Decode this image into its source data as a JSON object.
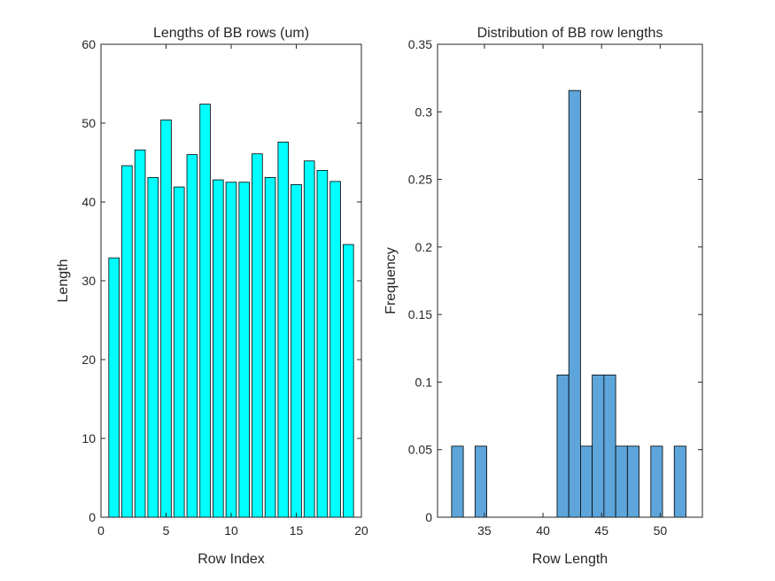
{
  "chart_data": [
    {
      "type": "bar",
      "title": "Lengths of BB rows (um)",
      "xlabel": "Row Index",
      "ylabel": "Length",
      "xlim": [
        0,
        20
      ],
      "ylim": [
        0,
        60
      ],
      "xticks": [
        "0",
        "5",
        "10",
        "15",
        "20"
      ],
      "yticks": [
        "0",
        "10",
        "20",
        "30",
        "40",
        "50",
        "60"
      ],
      "x": [
        1,
        2,
        3,
        4,
        5,
        6,
        7,
        8,
        9,
        10,
        11,
        12,
        13,
        14,
        15,
        16,
        17,
        18,
        19
      ],
      "values": [
        32.9,
        44.6,
        46.6,
        43.1,
        50.4,
        41.9,
        46.0,
        52.4,
        42.8,
        42.5,
        42.5,
        46.1,
        43.1,
        47.6,
        42.2,
        45.2,
        44.0,
        42.6,
        34.6
      ],
      "bar_color": "#00FFFF",
      "grid": false
    },
    {
      "type": "bar",
      "title": "Distribution of BB row lengths",
      "xlabel": "Row Length",
      "ylabel": "Frequency",
      "xlim": [
        31,
        53.6
      ],
      "ylim": [
        0,
        0.35
      ],
      "xticks": [
        "35",
        "40",
        "45",
        "50"
      ],
      "xtick_values": [
        35,
        40,
        45,
        50
      ],
      "yticks": [
        "0",
        "0.05",
        "0.1",
        "0.15",
        "0.2",
        "0.25",
        "0.3",
        "0.35"
      ],
      "bin_edges": [
        32.2,
        33.2,
        34.2,
        35.2,
        36.2,
        37.2,
        38.2,
        39.2,
        40.2,
        41.2,
        42.2,
        43.2,
        44.2,
        45.2,
        46.2,
        47.2,
        48.2,
        49.2,
        50.2,
        51.2,
        52.2,
        53.2
      ],
      "values": [
        0.0526,
        0,
        0.0526,
        0,
        0,
        0,
        0,
        0,
        0,
        0.1053,
        0.3158,
        0.0526,
        0.1053,
        0.1053,
        0.0526,
        0.0526,
        0,
        0.0526,
        0,
        0.0526,
        0
      ],
      "bar_color": "#5DA5DA",
      "grid": false
    }
  ]
}
